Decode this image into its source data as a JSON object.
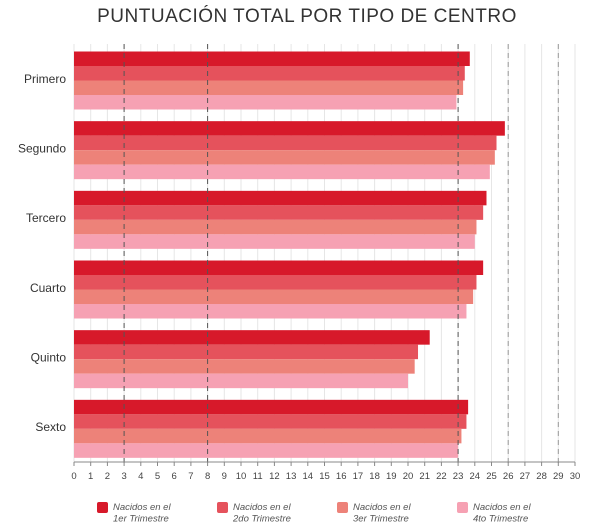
{
  "chart_data": {
    "type": "bar",
    "orientation": "horizontal",
    "title": "PUNTUACIÓN TOTAL POR TIPO DE CENTRO",
    "xlabel": "",
    "ylabel": "",
    "xlim": [
      0,
      30
    ],
    "xticks": [
      "0",
      "1",
      "2",
      "3",
      "4",
      "5",
      "6",
      "7",
      "8",
      "9",
      "10",
      "11",
      "12",
      "13",
      "14",
      "15",
      "16",
      "17",
      "18",
      "19",
      "20",
      "21",
      "22",
      "23",
      "24",
      "25",
      "26",
      "27",
      "28",
      "29",
      "30"
    ],
    "categories": [
      "Primero",
      "Segundo",
      "Tercero",
      "Cuarto",
      "Quinto",
      "Sexto"
    ],
    "series": [
      {
        "name": "Nacidos en el 1er Trimestre",
        "legend_lines": [
          "Nacidos en el",
          "1er Trimestre"
        ],
        "color": "#d7192a",
        "values": [
          23.7,
          25.8,
          24.7,
          24.5,
          21.3,
          23.6
        ]
      },
      {
        "name": "Nacidos en el 2do Trimestre",
        "legend_lines": [
          "Nacidos en el",
          "2do Trimestre"
        ],
        "color": "#e5525c",
        "values": [
          23.4,
          25.3,
          24.5,
          24.1,
          20.6,
          23.5
        ]
      },
      {
        "name": "Nacidos en el 3er Trimestre",
        "legend_lines": [
          "Nacidos en el",
          "3er Trimestre"
        ],
        "color": "#ed8279",
        "values": [
          23.3,
          25.2,
          24.1,
          23.9,
          20.4,
          23.2
        ]
      },
      {
        "name": "Nacidos en el 4to Trimestre",
        "legend_lines": [
          "Nacidos en el",
          "4to Trimestre"
        ],
        "color": "#f6a1b3",
        "values": [
          22.9,
          24.9,
          24.0,
          23.5,
          20.0,
          23.0
        ]
      }
    ],
    "reference_lines": {
      "dark_dashed": [
        3,
        8,
        23
      ],
      "light_dashed": [
        26,
        29
      ]
    },
    "grid": "vertical",
    "legend_position": "bottom"
  }
}
